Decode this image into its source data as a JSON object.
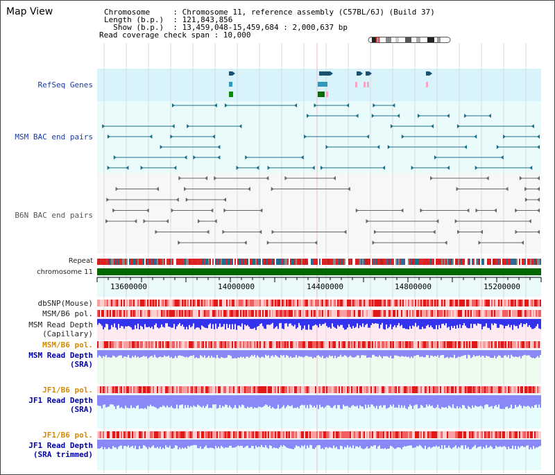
{
  "title": "Map View",
  "info": {
    "line1": "Chromosome     : Chromosome 11, reference assembly (C57BL/6J) (Build 37)",
    "line2": "Length (b.p.)  : 121,843,856",
    "line3": "  Show (b.p.)  : 13,459,048-15,459,684 : 2,000,637 bp",
    "line4": "Read coverage check span : 10,000"
  },
  "tracks": {
    "refseq": "RefSeq Genes",
    "msm_bac": "MSM BAC end pairs",
    "b6n_bac": "B6N BAC end pairs",
    "repeat": "Repeat",
    "chromosome": "chromosome 11",
    "dbsnp": "dbSNP(Mouse)",
    "msm_b6_pol": "MSM/B6 pol.",
    "msm_read_depth_cap_1": "MSM Read Depth",
    "msm_read_depth_cap_2": "(Capillary)",
    "msm_b6_pol2": "MSM/B6 pol.",
    "msm_read_depth_sra_1": "MSM Read Depth",
    "msm_read_depth_sra_2": "(SRA)",
    "jf1_b6_pol": "JF1/B6 pol.",
    "jf1_read_depth_sra_1": "JF1 Read Depth",
    "jf1_read_depth_sra_2": "(SRA)",
    "jf1_b6_pol2": "JF1/B6 pol.",
    "jf1_read_depth_trim_1": "JF1 Read Depth",
    "jf1_read_depth_trim_2": "(SRA trimmed)"
  },
  "axis": {
    "ticks": [
      "13600000",
      "14000000",
      "14400000",
      "14800000",
      "15200000"
    ]
  },
  "colors": {
    "refseq_bg": "#d9f3fb",
    "bac_bg": "#eafbfb",
    "msm_bac_feature": "#1a6e8a",
    "b6n_feature": "#666666",
    "chromosome_bar": "#006600",
    "snp_red": "#e02020",
    "depth_blue": "#3333ee",
    "depth_light": "#8888f8",
    "label_orange": "#d58a00"
  }
}
